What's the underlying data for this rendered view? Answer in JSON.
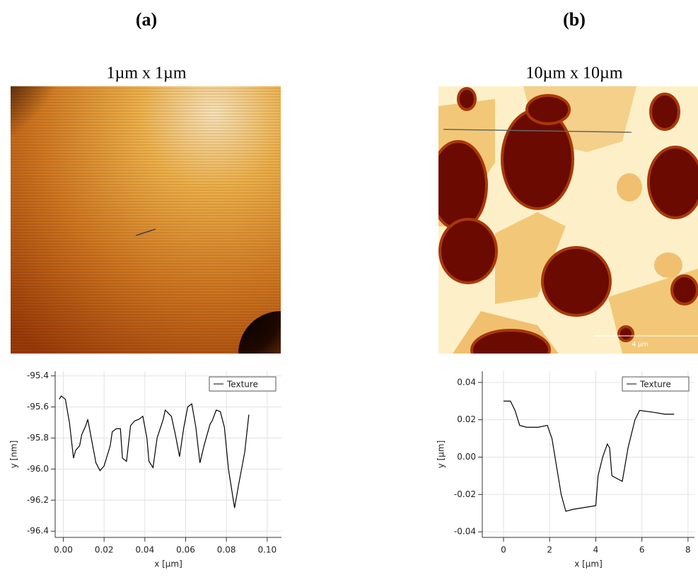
{
  "panels": [
    {
      "label": "(a)",
      "image_title": "1µm x 1µm"
    },
    {
      "label": "(b)",
      "image_title": "10µm x 10µm",
      "scale_bar": "4 µm"
    }
  ],
  "chart_data": [
    {
      "type": "line",
      "xlabel": "x [µm]",
      "ylabel": "y [nm]",
      "grid": true,
      "legend": "upper right",
      "xlim": [
        -0.004,
        0.107
      ],
      "ylim": [
        -96.44,
        -95.37
      ],
      "xticks": [
        {
          "value": 0,
          "label": "0.00"
        },
        0.02,
        0.04,
        0.06,
        0.08,
        {
          "value": 0.1,
          "label": "0.10"
        }
      ],
      "yticks": [
        -96.4,
        -96.2,
        {
          "value": -96,
          "label": "-96.0"
        },
        -95.8,
        -95.6,
        -95.4
      ],
      "x": [
        -0.002,
        -0.001,
        0.001,
        0.003,
        0.005,
        0.006,
        0.008,
        0.009,
        0.011,
        0.012,
        0.014,
        0.016,
        0.018,
        0.02,
        0.023,
        0.024,
        0.026,
        0.028,
        0.029,
        0.031,
        0.033,
        0.035,
        0.037,
        0.039,
        0.041,
        0.042,
        0.044,
        0.046,
        0.049,
        0.05,
        0.053,
        0.055,
        0.057,
        0.059,
        0.061,
        0.063,
        0.065,
        0.067,
        0.069,
        0.072,
        0.073,
        0.075,
        0.077,
        0.079,
        0.081,
        0.084,
        0.086,
        0.089,
        0.091
      ],
      "series": [
        {
          "name": "Texture",
          "color": "#000000",
          "values": [
            -95.55,
            -95.53,
            -95.55,
            -95.7,
            -95.93,
            -95.88,
            -95.85,
            -95.78,
            -95.72,
            -95.68,
            -95.82,
            -95.96,
            -96.01,
            -95.98,
            -95.85,
            -95.76,
            -95.74,
            -95.74,
            -95.93,
            -95.95,
            -95.72,
            -95.69,
            -95.68,
            -95.66,
            -95.8,
            -95.95,
            -95.99,
            -95.8,
            -95.68,
            -95.62,
            -95.66,
            -95.78,
            -95.92,
            -95.74,
            -95.6,
            -95.58,
            -95.73,
            -95.96,
            -95.85,
            -95.71,
            -95.69,
            -95.62,
            -95.63,
            -95.73,
            -96.0,
            -96.25,
            -96.1,
            -95.89,
            -95.65
          ]
        }
      ]
    },
    {
      "type": "line",
      "xlabel": "x [µm]",
      "ylabel": "y [µm]",
      "grid": true,
      "legend": "upper right",
      "xlim": [
        -0.92,
        8.28
      ],
      "ylim": [
        -0.043,
        0.046
      ],
      "xticks": [
        0,
        2,
        4,
        6,
        8
      ],
      "yticks": [
        -0.04,
        -0.02,
        {
          "value": 0,
          "label": "0.00"
        },
        0.02,
        0.04
      ],
      "x": [
        0,
        0.3,
        0.5,
        0.7,
        1.0,
        1.5,
        1.9,
        2.1,
        2.3,
        2.5,
        2.7,
        3.0,
        3.5,
        4.0,
        4.1,
        4.3,
        4.5,
        4.6,
        4.7,
        5.0,
        5.15,
        5.4,
        5.7,
        5.9,
        6.5,
        7.0,
        7.4
      ],
      "series": [
        {
          "name": "Texture",
          "color": "#000000",
          "values": [
            0.03,
            0.03,
            0.025,
            0.017,
            0.016,
            0.016,
            0.017,
            0.01,
            -0.005,
            -0.02,
            -0.029,
            -0.028,
            -0.027,
            -0.026,
            -0.01,
            0.0,
            0.007,
            0.005,
            -0.01,
            -0.012,
            -0.013,
            0.005,
            0.02,
            0.025,
            0.024,
            0.023,
            0.023
          ]
        }
      ]
    }
  ]
}
